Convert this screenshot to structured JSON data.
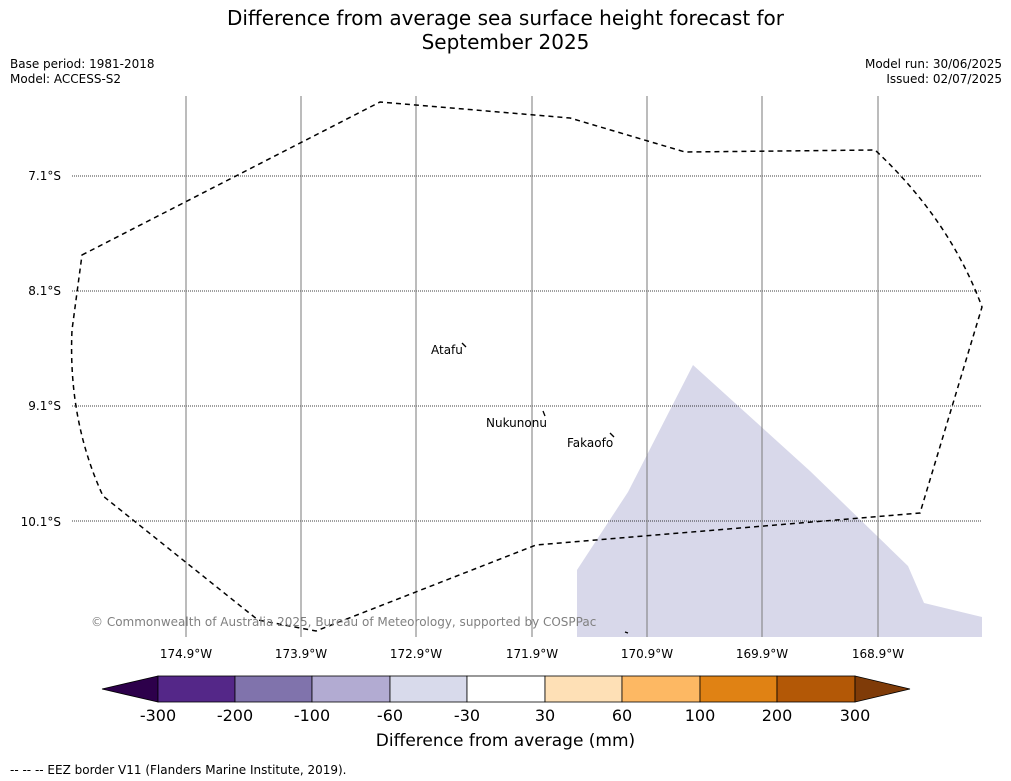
{
  "title": {
    "line1": "Difference from average sea surface height forecast for",
    "line2": "September 2025"
  },
  "meta": {
    "base_period": "Base period: 1981-2018",
    "model": "Model: ACCESS-S2",
    "model_run": "Model run: 30/06/2025",
    "issued": "Issued: 02/07/2025"
  },
  "map": {
    "latitude_labels": [
      "7.1°S",
      "8.1°S",
      "9.1°S",
      "10.1°S"
    ],
    "longitude_labels": [
      "174.9°W",
      "173.9°W",
      "172.9°W",
      "171.9°W",
      "170.9°W",
      "169.9°W",
      "168.9°W"
    ],
    "places": [
      "Atafu",
      "Nukunonu",
      "Fakaofo"
    ],
    "copyright": "© Commonwealth of Australia 2025, Bureau of Meteorology, supported by COSPPac",
    "shaded_category": "-60 to -30",
    "colors": {
      "shaded_fill": "#d8d8ea",
      "eez_line": "#000000",
      "meridian": "#7a7a7a"
    }
  },
  "colorbar": {
    "tick_labels": [
      "-300",
      "-200",
      "-100",
      "-60",
      "-30",
      "30",
      "60",
      "100",
      "200",
      "300"
    ],
    "colors": [
      "#2d004b",
      "#542788",
      "#8073ac",
      "#b2abd2",
      "#d8daeb",
      "#ffffff",
      "#fee0b6",
      "#fdb863",
      "#e08214",
      "#b35806",
      "#7f3b08"
    ],
    "label": "Difference from average (mm)"
  },
  "footer": {
    "legend_text": "--  --  -- EEZ border V11 (Flanders Marine Institute, 2019)."
  }
}
